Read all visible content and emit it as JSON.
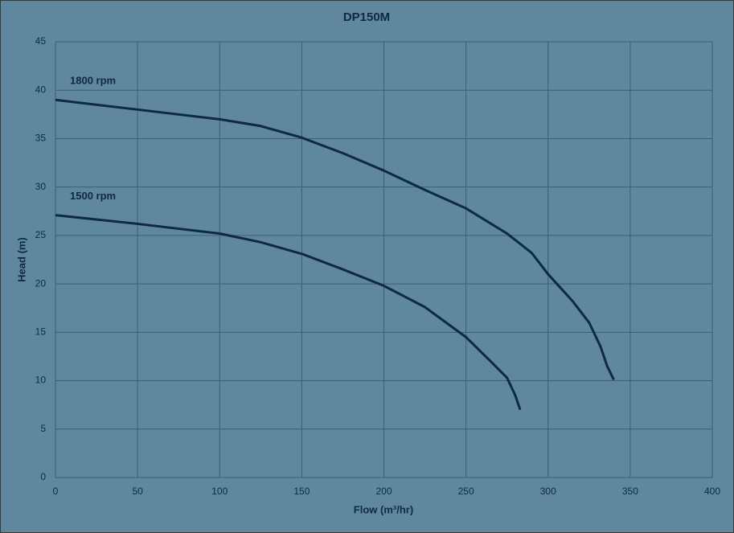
{
  "chart_data": {
    "type": "line",
    "title": "DP150M",
    "xlabel": "Flow (m³/hr)",
    "ylabel": "Head (m)",
    "xlim": [
      0,
      400
    ],
    "xticks": [
      0,
      50,
      100,
      150,
      200,
      250,
      300,
      350,
      400
    ],
    "ylim": [
      0,
      45
    ],
    "yticks": [
      0,
      5,
      10,
      15,
      20,
      25,
      30,
      35,
      40,
      45
    ],
    "grid": true,
    "series": [
      {
        "name": "1800 rpm",
        "color": "#0e2a40",
        "x": [
          0,
          50,
          100,
          125,
          150,
          175,
          200,
          225,
          250,
          275,
          290,
          300,
          315,
          325,
          332,
          336,
          340
        ],
        "values": [
          39,
          38,
          37,
          36.3,
          35.1,
          33.5,
          31.7,
          29.7,
          27.8,
          25.2,
          23.2,
          21,
          18.2,
          16,
          13.5,
          11.5,
          10.1
        ]
      },
      {
        "name": "1500 rpm",
        "color": "#0e2a40",
        "x": [
          0,
          50,
          100,
          125,
          150,
          175,
          200,
          225,
          250,
          265,
          275,
          280,
          283
        ],
        "values": [
          27.1,
          26.2,
          25.2,
          24.3,
          23.1,
          21.5,
          19.8,
          17.6,
          14.5,
          12,
          10.3,
          8.5,
          7
        ]
      }
    ]
  }
}
